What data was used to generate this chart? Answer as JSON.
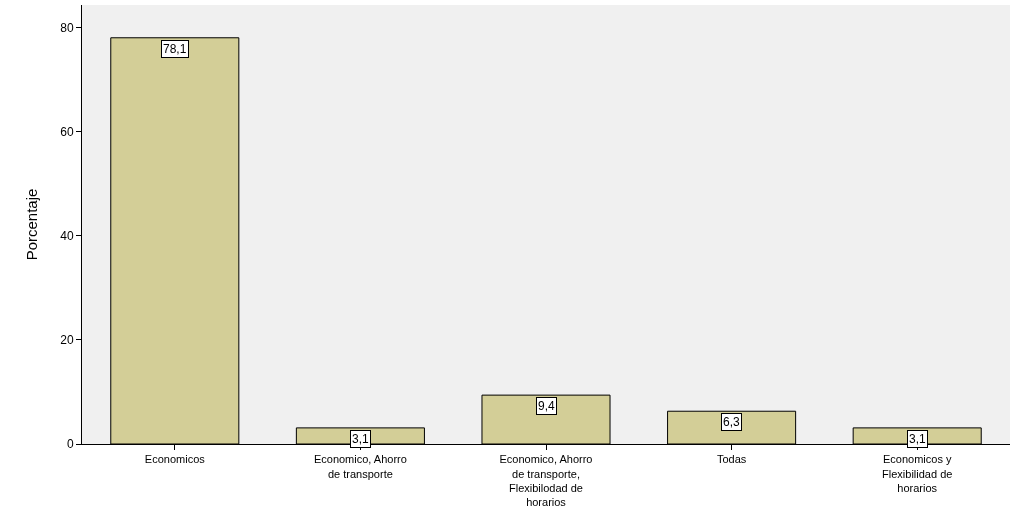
{
  "chart_data": {
    "type": "bar",
    "ylabel": "Porcentaje",
    "categories": [
      "Economicos",
      "Economico, Ahorro de transporte",
      "Economico, Ahorro de transporte, Flexibilodad de horarios",
      "Todas",
      "Economicos y Flexibilidad de horarios"
    ],
    "values": [
      78.1,
      3.1,
      9.4,
      6.3,
      3.1
    ],
    "value_labels": [
      "78,1",
      "3,1",
      "9,4",
      "6,3",
      "3,1"
    ],
    "color": "#d3ce97",
    "ylim": [
      0,
      84.4
    ],
    "yticks": [
      0,
      20,
      40,
      60,
      80
    ],
    "grid": false
  }
}
